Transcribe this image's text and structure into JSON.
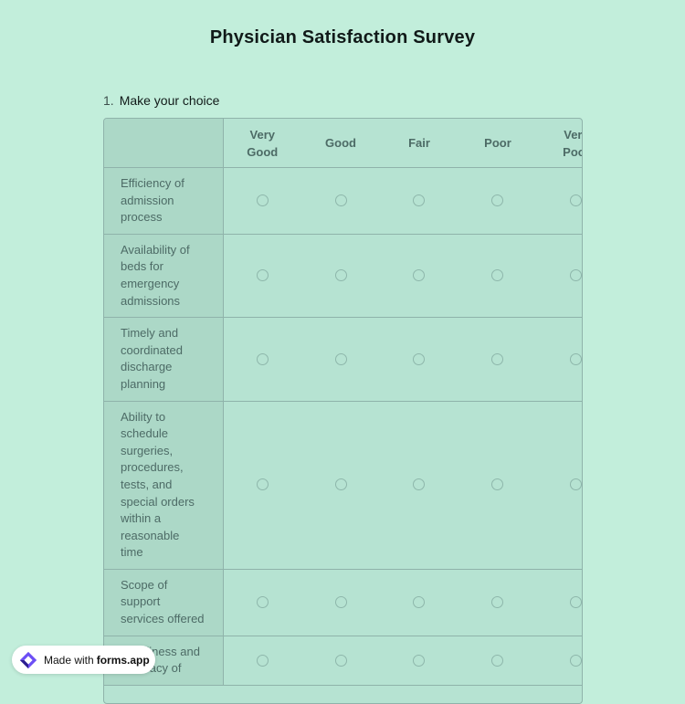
{
  "title": "Physician Satisfaction Survey",
  "question": {
    "number": "1.",
    "text": "Make your choice"
  },
  "matrix": {
    "columns": [
      "Very Good",
      "Good",
      "Fair",
      "Poor",
      "Very Poor"
    ],
    "rows": [
      "Efficiency of admission process",
      "Availability of beds for emergency admissions",
      "Timely and coordinated discharge planning",
      "Ability to schedule surgeries, procedures, tests, and special orders within a reasonable time",
      "Scope of support services offered",
      "Timeliness and accuracy of"
    ]
  },
  "badge": {
    "made_with": "Made with",
    "brand": "forms.app",
    "icon": "forms-app-logo-icon"
  },
  "colors": {
    "background": "#c2eedb",
    "matrix_background": "#b6e3d2",
    "row_header_background": "#acd8c7",
    "border": "#8fb3aa",
    "label_text": "#4d6b66",
    "brand_purple": "#6c4ef5"
  }
}
